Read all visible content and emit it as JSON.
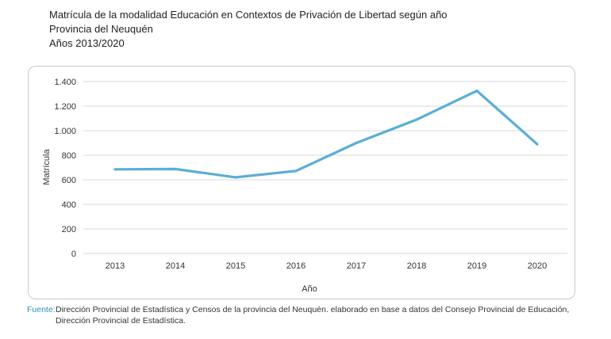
{
  "chart_data": {
    "type": "line",
    "title_lines": [
      "Matrícula de la modalidad Educación en Contextos de Privación de Libertad según año",
      "Provincia del Neuquén",
      "Años 2013/2020"
    ],
    "categories": [
      "2013",
      "2014",
      "2015",
      "2016",
      "2017",
      "2018",
      "2019",
      "2020"
    ],
    "series": [
      {
        "name": "Matrícula",
        "values": [
          685,
          688,
          620,
          672,
          900,
          1090,
          1325,
          890
        ]
      }
    ],
    "xlabel": "Año",
    "ylabel": "Matrícula",
    "ylim": [
      0,
      1400
    ],
    "yticks": [
      0,
      200,
      400,
      600,
      800,
      1000,
      1200,
      1400
    ],
    "ytick_labels": [
      "0",
      "200",
      "400",
      "600",
      "800",
      "1.000",
      "1.200",
      "1.400"
    ],
    "grid": true,
    "line_color": "#5aaed6",
    "grid_color": "#d9d9d9"
  },
  "source": {
    "label": "Fuente:",
    "text": "Dirección Provincial de Estadística y Censos de la provincia del Neuquén. elaborado en base a datos del Consejo Provincial de Educación, Dirección Provincial de Estadística."
  }
}
